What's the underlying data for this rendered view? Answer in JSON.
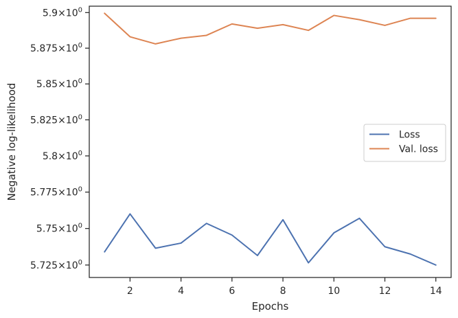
{
  "chart_data": {
    "type": "line",
    "xlabel": "Epochs",
    "ylabel": "Negative log-likelihood",
    "xlim": [
      0.4,
      14.6
    ],
    "ylim": [
      5.7165,
      5.9045
    ],
    "xticks": [
      2,
      4,
      6,
      8,
      10,
      12,
      14
    ],
    "yticks": [
      {
        "value": 5.725,
        "mantissa": "5.725"
      },
      {
        "value": 5.75,
        "mantissa": "5.75"
      },
      {
        "value": 5.775,
        "mantissa": "5.775"
      },
      {
        "value": 5.8,
        "mantissa": "5.8"
      },
      {
        "value": 5.825,
        "mantissa": "5.825"
      },
      {
        "value": 5.85,
        "mantissa": "5.85"
      },
      {
        "value": 5.875,
        "mantissa": "5.875"
      },
      {
        "value": 5.9,
        "mantissa": "5.9"
      }
    ],
    "ytick_suffix": "10",
    "ytick_exponent": "0",
    "yscale": "log",
    "grid": false,
    "legend_position": "center-right",
    "x": [
      1,
      2,
      3,
      4,
      5,
      6,
      7,
      8,
      9,
      10,
      11,
      12,
      13,
      14
    ],
    "series": [
      {
        "name": "Loss",
        "color": "#4c72b0",
        "values": [
          5.734,
          5.76,
          5.7365,
          5.74,
          5.7535,
          5.7455,
          5.7315,
          5.756,
          5.7265,
          5.747,
          5.757,
          5.7375,
          5.7325,
          5.725
        ]
      },
      {
        "name": "Val. loss",
        "color": "#dd8452",
        "values": [
          5.8995,
          5.883,
          5.878,
          5.882,
          5.884,
          5.892,
          5.889,
          5.8915,
          5.8875,
          5.898,
          5.895,
          5.891,
          5.896,
          5.896
        ]
      }
    ]
  }
}
